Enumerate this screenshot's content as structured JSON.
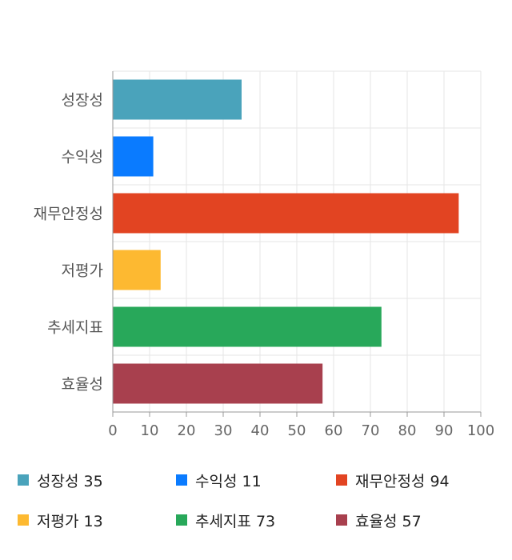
{
  "chart_data": {
    "type": "bar",
    "orientation": "horizontal",
    "categories": [
      "성장성",
      "수익성",
      "재무안정성",
      "저평가",
      "추세지표",
      "효율성"
    ],
    "values": [
      35,
      11,
      94,
      13,
      73,
      57
    ],
    "colors": [
      "#4aa3bb",
      "#0a7bff",
      "#e24422",
      "#fdb931",
      "#28a85a",
      "#a8404e"
    ],
    "xlim": [
      0,
      100
    ],
    "xticks": [
      "0",
      "10",
      "20",
      "30",
      "40",
      "50",
      "60",
      "70",
      "80",
      "90",
      "100"
    ],
    "grid": true,
    "legend_position": "bottom"
  },
  "legend": [
    {
      "label": "성장성 35",
      "color": "#4aa3bb"
    },
    {
      "label": "수익성 11",
      "color": "#0a7bff"
    },
    {
      "label": "재무안정성 94",
      "color": "#e24422"
    },
    {
      "label": "저평가 13",
      "color": "#fdb931"
    },
    {
      "label": "추세지표 73",
      "color": "#28a85a"
    },
    {
      "label": "효율성 57",
      "color": "#a8404e"
    }
  ]
}
